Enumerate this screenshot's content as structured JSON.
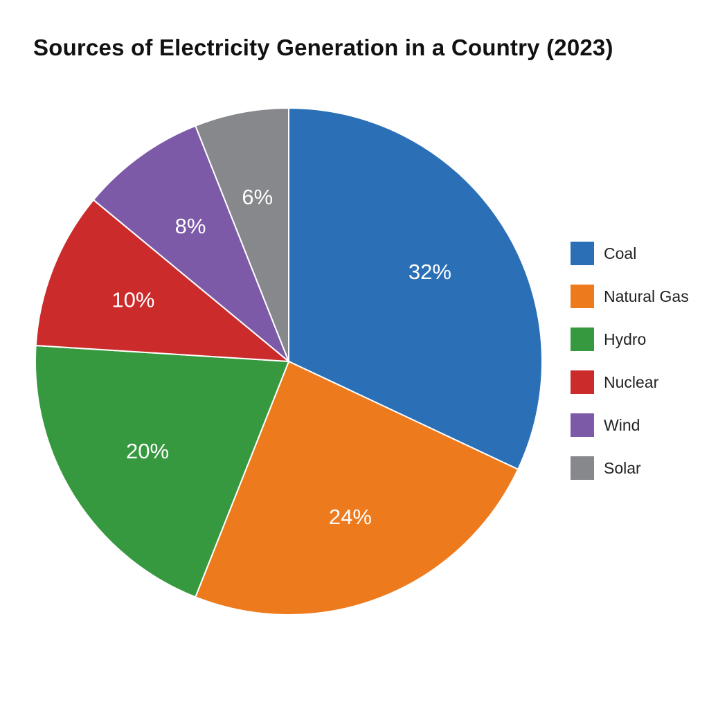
{
  "chart_data": {
    "type": "pie",
    "title": "Sources of Electricity Generation in a Country (2023)",
    "slices": [
      {
        "name": "Coal",
        "value": 32,
        "label": "32%",
        "color": "#2b70b6"
      },
      {
        "name": "Natural Gas",
        "value": 24,
        "label": "24%",
        "color": "#ee7a1e"
      },
      {
        "name": "Hydro",
        "value": 20,
        "label": "20%",
        "color": "#36993f"
      },
      {
        "name": "Nuclear",
        "value": 10,
        "label": "10%",
        "color": "#cc2b2b"
      },
      {
        "name": "Wind",
        "value": 8,
        "label": "8%",
        "color": "#7d5aa8"
      },
      {
        "name": "Solar",
        "value": 6,
        "label": "6%",
        "color": "#86888b"
      }
    ],
    "legend_position": "right"
  }
}
